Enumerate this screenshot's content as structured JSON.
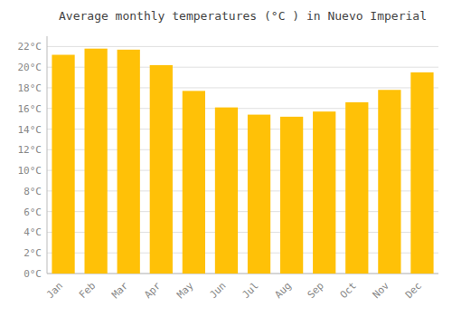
{
  "chart_data": {
    "type": "bar",
    "title": "Average monthly temperatures (°C ) in Nuevo Imperial",
    "categories": [
      "Jan",
      "Feb",
      "Mar",
      "Apr",
      "May",
      "Jun",
      "Jul",
      "Aug",
      "Sep",
      "Oct",
      "Nov",
      "Dec"
    ],
    "values": [
      21.2,
      21.8,
      21.7,
      20.2,
      17.7,
      16.1,
      15.4,
      15.2,
      15.7,
      16.6,
      17.8,
      19.5
    ],
    "color": "#FFC107",
    "ylim": [
      0,
      23
    ],
    "yticks": [
      {
        "value": 0,
        "label": "0°C"
      },
      {
        "value": 2,
        "label": "2°C"
      },
      {
        "value": 4,
        "label": "4°C"
      },
      {
        "value": 6,
        "label": "6°C"
      },
      {
        "value": 8,
        "label": "8°C"
      },
      {
        "value": 10,
        "label": "10°C"
      },
      {
        "value": 12,
        "label": "12°C"
      },
      {
        "value": 14,
        "label": "14°C"
      },
      {
        "value": 16,
        "label": "16°C"
      },
      {
        "value": 18,
        "label": "18°C"
      },
      {
        "value": 20,
        "label": "20°C"
      },
      {
        "value": 22,
        "label": "22°C"
      }
    ],
    "grid": true
  }
}
